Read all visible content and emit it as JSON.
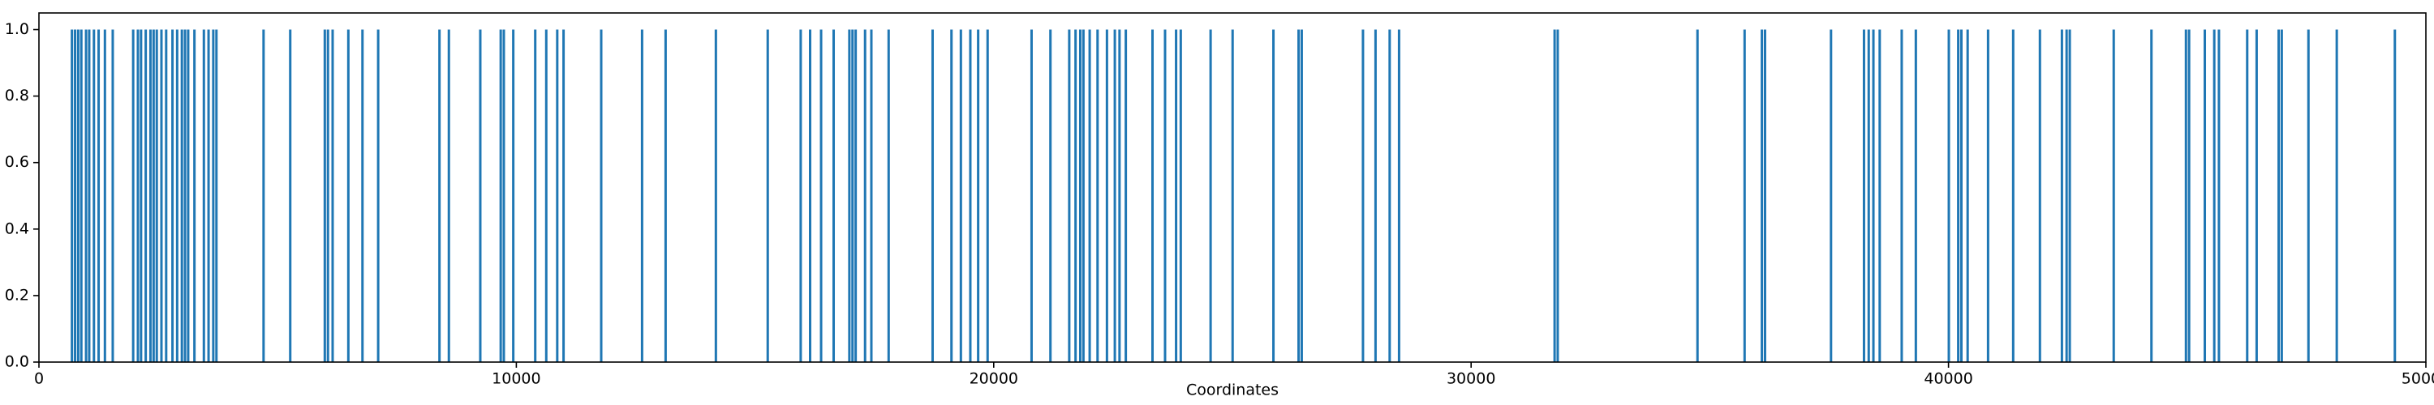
{
  "chart_data": {
    "type": "bar",
    "xlabel": "Coordinates",
    "color": "#1f77b4",
    "x": [
      691,
      757,
      823,
      888,
      987,
      1053,
      1152,
      1250,
      1382,
      1546,
      1974,
      2073,
      2139,
      2237,
      2336,
      2402,
      2468,
      2566,
      2665,
      2797,
      2895,
      2994,
      3060,
      3126,
      3257,
      3455,
      3553,
      3652,
      3718,
      4705,
      5264,
      5988,
      6054,
      6152,
      6481,
      6777,
      7106,
      8390,
      8587,
      9245,
      9673,
      9738,
      9936,
      10396,
      10627,
      10857,
      10989,
      11778,
      12634,
      13127,
      14180,
      15266,
      15957,
      16154,
      16384,
      16647,
      16976,
      17042,
      17108,
      17305,
      17437,
      17799,
      18720,
      19115,
      19312,
      19510,
      19674,
      19872,
      20793,
      21188,
      21582,
      21714,
      21813,
      21879,
      22010,
      22175,
      22372,
      22537,
      22635,
      22767,
      23326,
      23589,
      23820,
      23918,
      24543,
      25004,
      25859,
      26386,
      26452,
      27735,
      27998,
      28294,
      28491,
      31749,
      31814,
      34742,
      35729,
      36091,
      36157,
      37539,
      38230,
      38329,
      38427,
      38559,
      39020,
      39316,
      40007,
      40204,
      40270,
      40401,
      40829,
      41355,
      41915,
      42376,
      42474,
      42540,
      43461,
      44251,
      44974,
      45040,
      45369,
      45567,
      45665,
      46257,
      46455,
      46916,
      46981,
      47540,
      48133,
      49350
    ],
    "values": [
      1,
      1,
      1,
      1,
      1,
      1,
      1,
      1,
      1,
      1,
      1,
      1,
      1,
      1,
      1,
      1,
      1,
      1,
      1,
      1,
      1,
      1,
      1,
      1,
      1,
      1,
      1,
      1,
      1,
      1,
      1,
      1,
      1,
      1,
      1,
      1,
      1,
      1,
      1,
      1,
      1,
      1,
      1,
      1,
      1,
      1,
      1,
      1,
      1,
      1,
      1,
      1,
      1,
      1,
      1,
      1,
      1,
      1,
      1,
      1,
      1,
      1,
      1,
      1,
      1,
      1,
      1,
      1,
      1,
      1,
      1,
      1,
      1,
      1,
      1,
      1,
      1,
      1,
      1,
      1,
      1,
      1,
      1,
      1,
      1,
      1,
      1,
      1,
      1,
      1,
      1,
      1,
      1,
      1,
      1,
      1,
      1,
      1,
      1,
      1,
      1,
      1,
      1,
      1,
      1,
      1,
      1,
      1,
      1,
      1,
      1,
      1,
      1,
      1,
      1,
      1,
      1,
      1,
      1,
      1,
      1,
      1,
      1,
      1,
      1,
      1,
      1,
      1,
      1,
      1
    ],
    "xlim": [
      0,
      50000
    ],
    "xticks": [
      0,
      10000,
      20000,
      30000,
      40000,
      50000
    ],
    "ylim": [
      0,
      1.05
    ],
    "yticks": [
      {
        "value": 0,
        "label": "0.0"
      },
      {
        "value": 0.2,
        "label": "0.2"
      },
      {
        "value": 0.4,
        "label": "0.4"
      },
      {
        "value": 0.6,
        "label": "0.6"
      },
      {
        "value": 0.8,
        "label": "0.8"
      },
      {
        "value": 1.0,
        "label": "1.0"
      }
    ]
  }
}
